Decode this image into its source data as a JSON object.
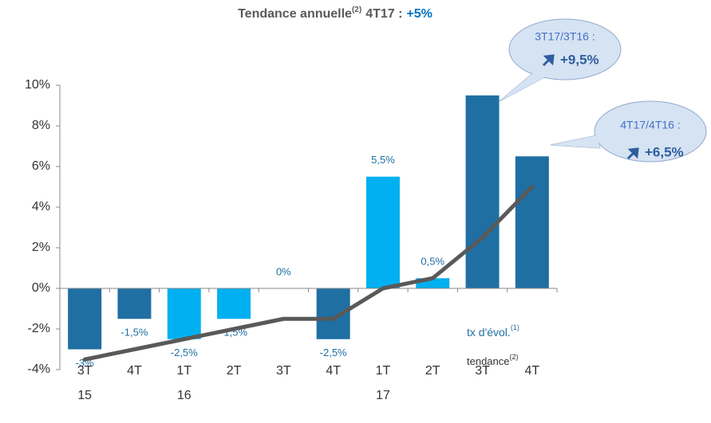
{
  "chart_data": {
    "type": "bar",
    "title": "Tendance annuelle",
    "title_note": "(2)",
    "title_suffix": "4T17 :",
    "title_highlight": "+5%",
    "categories": [
      "3T",
      "4T",
      "1T",
      "2T",
      "3T",
      "4T",
      "1T",
      "2T",
      "3T",
      "4T"
    ],
    "years": [
      "15",
      null,
      "16",
      null,
      null,
      null,
      "17",
      null,
      null,
      null
    ],
    "ylim": [
      -4,
      10
    ],
    "yticks": [
      {
        "value": -4,
        "label": "-4%"
      },
      {
        "value": -2,
        "label": "-2%"
      },
      {
        "value": 0,
        "label": "0%"
      },
      {
        "value": 2,
        "label": "2%"
      },
      {
        "value": 4,
        "label": "4%"
      },
      {
        "value": 6,
        "label": "6%"
      },
      {
        "value": 8,
        "label": "8%"
      },
      {
        "value": 10,
        "label": "10%"
      }
    ],
    "series": [
      {
        "name": "tx d'évol.",
        "name_note": "(1)",
        "type": "bar",
        "color": "#1f6fa3",
        "colors": [
          "#1f6fa3",
          "#1f6fa3",
          "#00b0f0",
          "#00b0f0",
          "#1f6fa3",
          "#1f6fa3",
          "#00b0f0",
          "#00b0f0",
          "#1f6fa3",
          "#1f6fa3"
        ],
        "values": [
          -3,
          -1.5,
          -2.5,
          -1.5,
          0,
          -2.5,
          5.5,
          0.5,
          9.5,
          6.5
        ],
        "value_labels": [
          "-3%",
          "-1,5%",
          "-2,5%",
          "-1,5%",
          "0%",
          "-2,5%",
          "5,5%",
          "0,5%",
          null,
          null
        ]
      },
      {
        "name": "tendance",
        "name_note": "(2)",
        "type": "line",
        "color": "#595959",
        "values": [
          -3.5,
          -3,
          -2.5,
          -2,
          -1.5,
          -1.5,
          0,
          0.5,
          2.5,
          5
        ]
      }
    ],
    "annotations": [
      {
        "label": "3T17/3T16 :",
        "value": "+9,5%"
      },
      {
        "label": "4T17/4T16 :",
        "value": "+6,5%"
      }
    ]
  }
}
